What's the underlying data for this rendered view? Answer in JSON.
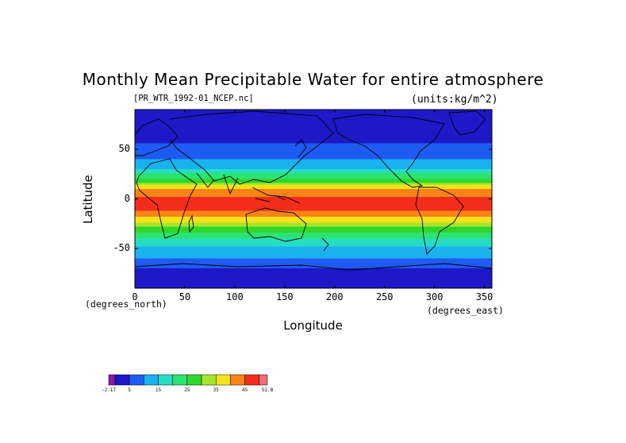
{
  "chart_data": {
    "type": "heatmap",
    "title": "Monthly Mean Precipitable Water for entire atmosphere",
    "filename": "[PR_WTR_1992-01_NCEP.nc]",
    "units": "(units:kg/m^2)",
    "xlabel": "Longitude",
    "ylabel": "Latitude",
    "x_units": "(degrees_east)",
    "y_units": "(degrees_north)",
    "xlim": [
      0,
      357.5
    ],
    "ylim": [
      -90,
      90
    ],
    "x_ticks": [
      "0",
      "50",
      "100",
      "150",
      "200",
      "250",
      "300",
      "350"
    ],
    "x_tick_values": [
      0,
      50,
      100,
      150,
      200,
      250,
      300,
      350
    ],
    "y_ticks": [
      "50",
      "0",
      "-50"
    ],
    "y_tick_values": [
      50,
      0,
      -50
    ],
    "colorbar": {
      "colors": [
        "#8b1aa5",
        "#1d19c9",
        "#1e5bf2",
        "#19b2ef",
        "#26ddc4",
        "#2be370",
        "#31d62d",
        "#a6e62a",
        "#f4e21b",
        "#f88417",
        "#f32d1b",
        "#f06a78"
      ],
      "boundaries": [
        -2.17,
        0,
        5,
        10,
        15,
        20,
        25,
        30,
        35,
        40,
        45,
        50,
        52.8
      ],
      "labels": [
        "-2.17",
        "5",
        "15",
        "25",
        "35",
        "45",
        "52.8"
      ],
      "label_values": [
        -2.17,
        5,
        15,
        25,
        35,
        45,
        52.8
      ]
    },
    "zonal_profile": {
      "lat": [
        -90,
        -80,
        -70,
        -60,
        -50,
        -40,
        -30,
        -20,
        -10,
        0,
        10,
        20,
        30,
        40,
        50,
        60,
        70,
        80,
        90
      ],
      "value": [
        1,
        2,
        5,
        10,
        14,
        20,
        28,
        38,
        46,
        47,
        40,
        25,
        15,
        10,
        6,
        4,
        3,
        2,
        2
      ]
    }
  }
}
